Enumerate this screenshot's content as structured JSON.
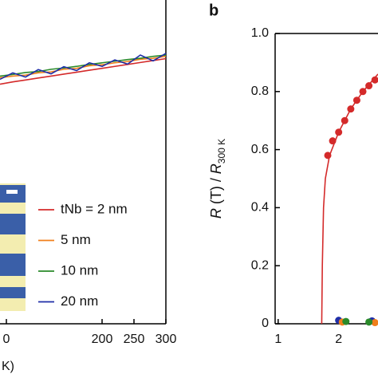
{
  "chart_data": [
    {
      "type": "line",
      "x_label": "K)",
      "x": [
        40,
        60,
        80,
        100,
        120,
        140,
        160,
        180,
        200,
        220,
        240,
        260,
        280,
        300
      ],
      "xlim": [
        40,
        300
      ],
      "xticks": [
        {
          "value": 50,
          "label": "0"
        },
        200,
        250,
        300
      ],
      "ylim": [
        0,
        1
      ],
      "series": [
        {
          "name": "tNb = 2 nm",
          "color": "#d42a2a",
          "values": [
            0.74,
            0.747,
            0.753,
            0.759,
            0.765,
            0.771,
            0.777,
            0.783,
            0.789,
            0.795,
            0.801,
            0.807,
            0.813,
            0.819
          ]
        },
        {
          "name": "5 nm",
          "color": "#f07f1c",
          "values": [
            0.76,
            0.765,
            0.768,
            0.775,
            0.778,
            0.786,
            0.789,
            0.797,
            0.8,
            0.806,
            0.81,
            0.817,
            0.82,
            0.826
          ]
        },
        {
          "name": "10 nm",
          "color": "#2a8a2a",
          "values": [
            0.765,
            0.77,
            0.776,
            0.779,
            0.786,
            0.79,
            0.795,
            0.801,
            0.806,
            0.811,
            0.816,
            0.82,
            0.826,
            0.83
          ]
        },
        {
          "name": "20 nm",
          "color": "#1f2ea8",
          "values": [
            0.755,
            0.775,
            0.762,
            0.785,
            0.772,
            0.794,
            0.782,
            0.806,
            0.795,
            0.815,
            0.802,
            0.83,
            0.812,
            0.835
          ]
        }
      ]
    },
    {
      "type": "scatter",
      "panel_label": "b",
      "y_label": [
        "R",
        " (T) / ",
        "R",
        "300 K"
      ],
      "xlim": [
        0.95,
        2.65
      ],
      "xticks": [
        1,
        2
      ],
      "ylim": [
        0,
        1
      ],
      "yticks": [
        0,
        0.2,
        0.4,
        0.6,
        0.8,
        {
          "value": 1,
          "label": "1.0"
        }
      ],
      "series": [
        {
          "color": "#d42a2a",
          "line": true,
          "x": [
            1.72,
            1.73,
            1.75,
            1.78,
            1.85,
            2.0,
            2.2,
            2.4,
            2.65
          ],
          "values": [
            0,
            0.2,
            0.4,
            0.5,
            0.58,
            0.66,
            0.74,
            0.8,
            0.86
          ]
        },
        {
          "color": "#d42a2a",
          "x": [
            1.82,
            1.9,
            2.0,
            2.1,
            2.2,
            2.3,
            2.4,
            2.5,
            2.6
          ],
          "values": [
            0.58,
            0.63,
            0.66,
            0.7,
            0.74,
            0.77,
            0.8,
            0.82,
            0.84
          ]
        },
        {
          "color": "#1f2ea8",
          "x": [
            2.0,
            2.55
          ],
          "values": [
            0.012,
            0.01
          ]
        },
        {
          "color": "#f07f1c",
          "x": [
            2.06,
            2.6
          ],
          "values": [
            0.006,
            0.004
          ]
        },
        {
          "color": "#2a8a2a",
          "x": [
            2.12,
            2.5
          ],
          "values": [
            0.008,
            0.006
          ]
        }
      ]
    }
  ]
}
